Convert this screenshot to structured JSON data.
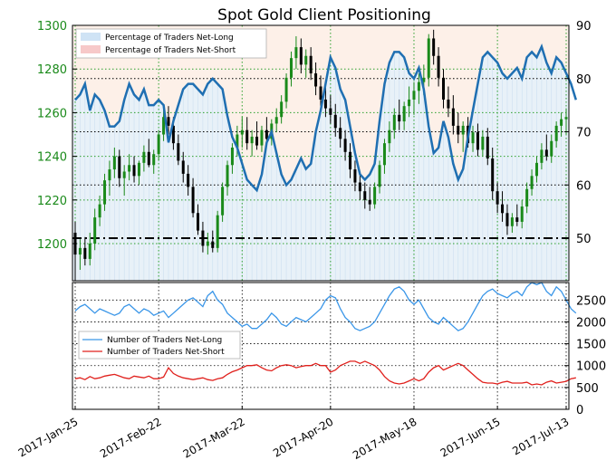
{
  "chart_data": [
    {
      "type": "candlestick-line-area",
      "title": "Spot Gold Client Positioning",
      "left_axis": {
        "ticks": [
          1200,
          1220,
          1240,
          1260,
          1280,
          1300
        ],
        "ylim": [
          1183,
          1300
        ],
        "color": "#1a8a1a"
      },
      "right_axis": {
        "ticks": [
          50,
          60,
          70,
          80,
          90
        ],
        "ylim": [
          42,
          90
        ]
      },
      "legend": {
        "placement": "top-left",
        "entries": [
          {
            "label": "Percentage of Traders Net-Long",
            "color": "#cfe3f5"
          },
          {
            "label": "Percentage of Traders Net-Short",
            "color": "#f7c9c9"
          }
        ]
      },
      "reference_line": {
        "value": 50,
        "axis": "right",
        "style": "dash-dot"
      },
      "x_ticks": [
        "2017-Jan-25",
        "2017-Feb-22",
        "2017-Mar-22",
        "2017-Apr-20",
        "2017-May-18",
        "2017-Jun-15",
        "2017-Jul-13"
      ],
      "net_long_pct": [
        76,
        77,
        79,
        74,
        77,
        76,
        74,
        71,
        71,
        72,
        76,
        79,
        77,
        76,
        78,
        75,
        75,
        76,
        75,
        68,
        72,
        75,
        78,
        79,
        79,
        78,
        77,
        79,
        80,
        79,
        78,
        73,
        69,
        67,
        64,
        61,
        60,
        59,
        62,
        68,
        70,
        66,
        62,
        60,
        61,
        63,
        65,
        63,
        64,
        70,
        74,
        79,
        84,
        82,
        78,
        76,
        71,
        66,
        62,
        61,
        62,
        64,
        72,
        79,
        83,
        85,
        85,
        84,
        81,
        80,
        82,
        78,
        71,
        66,
        67,
        72,
        69,
        64,
        61,
        63,
        69,
        74,
        79,
        84,
        85,
        84,
        83,
        81,
        80,
        81,
        82,
        80,
        84,
        85,
        84,
        86,
        83,
        81,
        84,
        83,
        81,
        79,
        76
      ],
      "candles": [
        {
          "o": 1205,
          "h": 1210,
          "l": 1183,
          "c": 1195
        },
        {
          "o": 1195,
          "h": 1202,
          "l": 1188,
          "c": 1198
        },
        {
          "o": 1198,
          "h": 1203,
          "l": 1190,
          "c": 1193
        },
        {
          "o": 1193,
          "h": 1205,
          "l": 1190,
          "c": 1200
        },
        {
          "o": 1200,
          "h": 1216,
          "l": 1197,
          "c": 1212
        },
        {
          "o": 1212,
          "h": 1222,
          "l": 1208,
          "c": 1218
        },
        {
          "o": 1218,
          "h": 1232,
          "l": 1215,
          "c": 1229
        },
        {
          "o": 1229,
          "h": 1238,
          "l": 1222,
          "c": 1234
        },
        {
          "o": 1234,
          "h": 1244,
          "l": 1230,
          "c": 1240
        },
        {
          "o": 1240,
          "h": 1243,
          "l": 1226,
          "c": 1230
        },
        {
          "o": 1230,
          "h": 1236,
          "l": 1222,
          "c": 1233
        },
        {
          "o": 1233,
          "h": 1241,
          "l": 1229,
          "c": 1236
        },
        {
          "o": 1236,
          "h": 1240,
          "l": 1228,
          "c": 1231
        },
        {
          "o": 1231,
          "h": 1238,
          "l": 1227,
          "c": 1237
        },
        {
          "o": 1237,
          "h": 1245,
          "l": 1233,
          "c": 1242
        },
        {
          "o": 1242,
          "h": 1248,
          "l": 1235,
          "c": 1236
        },
        {
          "o": 1236,
          "h": 1243,
          "l": 1232,
          "c": 1241
        },
        {
          "o": 1241,
          "h": 1252,
          "l": 1238,
          "c": 1250
        },
        {
          "o": 1250,
          "h": 1262,
          "l": 1247,
          "c": 1258
        },
        {
          "o": 1258,
          "h": 1263,
          "l": 1250,
          "c": 1254
        },
        {
          "o": 1254,
          "h": 1258,
          "l": 1243,
          "c": 1246
        },
        {
          "o": 1246,
          "h": 1250,
          "l": 1236,
          "c": 1238
        },
        {
          "o": 1238,
          "h": 1242,
          "l": 1228,
          "c": 1232
        },
        {
          "o": 1232,
          "h": 1236,
          "l": 1222,
          "c": 1226
        },
        {
          "o": 1226,
          "h": 1230,
          "l": 1212,
          "c": 1214
        },
        {
          "o": 1214,
          "h": 1218,
          "l": 1204,
          "c": 1206
        },
        {
          "o": 1206,
          "h": 1210,
          "l": 1196,
          "c": 1199
        },
        {
          "o": 1199,
          "h": 1205,
          "l": 1195,
          "c": 1201
        },
        {
          "o": 1201,
          "h": 1206,
          "l": 1196,
          "c": 1198
        },
        {
          "o": 1198,
          "h": 1215,
          "l": 1196,
          "c": 1213
        },
        {
          "o": 1213,
          "h": 1228,
          "l": 1210,
          "c": 1226
        },
        {
          "o": 1226,
          "h": 1238,
          "l": 1222,
          "c": 1236
        },
        {
          "o": 1236,
          "h": 1246,
          "l": 1232,
          "c": 1244
        },
        {
          "o": 1244,
          "h": 1254,
          "l": 1240,
          "c": 1250
        },
        {
          "o": 1250,
          "h": 1258,
          "l": 1244,
          "c": 1252
        },
        {
          "o": 1252,
          "h": 1258,
          "l": 1243,
          "c": 1246
        },
        {
          "o": 1246,
          "h": 1252,
          "l": 1240,
          "c": 1249
        },
        {
          "o": 1249,
          "h": 1256,
          "l": 1243,
          "c": 1245
        },
        {
          "o": 1245,
          "h": 1254,
          "l": 1242,
          "c": 1252
        },
        {
          "o": 1252,
          "h": 1258,
          "l": 1246,
          "c": 1248
        },
        {
          "o": 1248,
          "h": 1257,
          "l": 1245,
          "c": 1255
        },
        {
          "o": 1255,
          "h": 1262,
          "l": 1251,
          "c": 1258
        },
        {
          "o": 1258,
          "h": 1268,
          "l": 1255,
          "c": 1265
        },
        {
          "o": 1265,
          "h": 1278,
          "l": 1262,
          "c": 1276
        },
        {
          "o": 1276,
          "h": 1288,
          "l": 1272,
          "c": 1285
        },
        {
          "o": 1285,
          "h": 1295,
          "l": 1280,
          "c": 1290
        },
        {
          "o": 1290,
          "h": 1294,
          "l": 1278,
          "c": 1282
        },
        {
          "o": 1282,
          "h": 1289,
          "l": 1276,
          "c": 1286
        },
        {
          "o": 1286,
          "h": 1290,
          "l": 1275,
          "c": 1278
        },
        {
          "o": 1278,
          "h": 1283,
          "l": 1268,
          "c": 1272
        },
        {
          "o": 1272,
          "h": 1277,
          "l": 1262,
          "c": 1266
        },
        {
          "o": 1266,
          "h": 1272,
          "l": 1258,
          "c": 1262
        },
        {
          "o": 1262,
          "h": 1268,
          "l": 1255,
          "c": 1259
        },
        {
          "o": 1259,
          "h": 1264,
          "l": 1249,
          "c": 1253
        },
        {
          "o": 1253,
          "h": 1258,
          "l": 1244,
          "c": 1248
        },
        {
          "o": 1248,
          "h": 1252,
          "l": 1238,
          "c": 1242
        },
        {
          "o": 1242,
          "h": 1246,
          "l": 1230,
          "c": 1234
        },
        {
          "o": 1234,
          "h": 1238,
          "l": 1224,
          "c": 1228
        },
        {
          "o": 1228,
          "h": 1232,
          "l": 1220,
          "c": 1224
        },
        {
          "o": 1224,
          "h": 1228,
          "l": 1216,
          "c": 1220
        },
        {
          "o": 1220,
          "h": 1226,
          "l": 1215,
          "c": 1218
        },
        {
          "o": 1218,
          "h": 1228,
          "l": 1216,
          "c": 1226
        },
        {
          "o": 1226,
          "h": 1238,
          "l": 1223,
          "c": 1236
        },
        {
          "o": 1236,
          "h": 1248,
          "l": 1232,
          "c": 1246
        },
        {
          "o": 1246,
          "h": 1256,
          "l": 1242,
          "c": 1252
        },
        {
          "o": 1252,
          "h": 1262,
          "l": 1248,
          "c": 1259
        },
        {
          "o": 1259,
          "h": 1266,
          "l": 1252,
          "c": 1256
        },
        {
          "o": 1256,
          "h": 1265,
          "l": 1252,
          "c": 1263
        },
        {
          "o": 1263,
          "h": 1272,
          "l": 1258,
          "c": 1266
        },
        {
          "o": 1266,
          "h": 1274,
          "l": 1259,
          "c": 1270
        },
        {
          "o": 1270,
          "h": 1278,
          "l": 1264,
          "c": 1274
        },
        {
          "o": 1274,
          "h": 1282,
          "l": 1268,
          "c": 1276
        },
        {
          "o": 1276,
          "h": 1296,
          "l": 1272,
          "c": 1294
        },
        {
          "o": 1294,
          "h": 1298,
          "l": 1282,
          "c": 1286
        },
        {
          "o": 1286,
          "h": 1290,
          "l": 1272,
          "c": 1276
        },
        {
          "o": 1276,
          "h": 1280,
          "l": 1262,
          "c": 1266
        },
        {
          "o": 1266,
          "h": 1272,
          "l": 1258,
          "c": 1262
        },
        {
          "o": 1262,
          "h": 1268,
          "l": 1250,
          "c": 1254
        },
        {
          "o": 1254,
          "h": 1260,
          "l": 1246,
          "c": 1250
        },
        {
          "o": 1250,
          "h": 1256,
          "l": 1242,
          "c": 1254
        },
        {
          "o": 1254,
          "h": 1258,
          "l": 1244,
          "c": 1246
        },
        {
          "o": 1246,
          "h": 1254,
          "l": 1242,
          "c": 1251
        },
        {
          "o": 1251,
          "h": 1255,
          "l": 1240,
          "c": 1243
        },
        {
          "o": 1243,
          "h": 1252,
          "l": 1240,
          "c": 1249
        },
        {
          "o": 1249,
          "h": 1253,
          "l": 1236,
          "c": 1239
        },
        {
          "o": 1239,
          "h": 1244,
          "l": 1220,
          "c": 1224
        },
        {
          "o": 1224,
          "h": 1228,
          "l": 1214,
          "c": 1218
        },
        {
          "o": 1218,
          "h": 1224,
          "l": 1210,
          "c": 1214
        },
        {
          "o": 1214,
          "h": 1218,
          "l": 1204,
          "c": 1208
        },
        {
          "o": 1208,
          "h": 1214,
          "l": 1205,
          "c": 1212
        },
        {
          "o": 1212,
          "h": 1218,
          "l": 1208,
          "c": 1210
        },
        {
          "o": 1210,
          "h": 1220,
          "l": 1207,
          "c": 1217
        },
        {
          "o": 1217,
          "h": 1228,
          "l": 1214,
          "c": 1225
        },
        {
          "o": 1225,
          "h": 1234,
          "l": 1222,
          "c": 1231
        },
        {
          "o": 1231,
          "h": 1240,
          "l": 1228,
          "c": 1237
        },
        {
          "o": 1237,
          "h": 1246,
          "l": 1234,
          "c": 1243
        },
        {
          "o": 1243,
          "h": 1250,
          "l": 1238,
          "c": 1240
        },
        {
          "o": 1240,
          "h": 1250,
          "l": 1237,
          "c": 1247
        },
        {
          "o": 1247,
          "h": 1256,
          "l": 1244,
          "c": 1254
        },
        {
          "o": 1254,
          "h": 1260,
          "l": 1249,
          "c": 1257
        },
        {
          "o": 1257,
          "h": 1262,
          "l": 1250,
          "c": 1258
        }
      ]
    },
    {
      "type": "line",
      "y_ticks": [
        0,
        500,
        1000,
        1500,
        2000,
        2500
      ],
      "ylim": [
        0,
        2900
      ],
      "legend": {
        "placement": "center-left",
        "entries": [
          {
            "label": "Number of Traders Net-Long",
            "color": "#3a96e8"
          },
          {
            "label": "Number of Traders Net-Short",
            "color": "#e0201c"
          }
        ]
      },
      "series": [
        {
          "name": "Number of Traders Net-Long",
          "color": "#3a96e8",
          "values": [
            2250,
            2350,
            2400,
            2300,
            2200,
            2300,
            2250,
            2200,
            2150,
            2200,
            2350,
            2400,
            2300,
            2200,
            2300,
            2250,
            2150,
            2200,
            2250,
            2100,
            2200,
            2300,
            2400,
            2500,
            2550,
            2450,
            2350,
            2600,
            2700,
            2500,
            2400,
            2200,
            2100,
            2000,
            1900,
            1950,
            1850,
            1850,
            1950,
            2050,
            2200,
            2100,
            1950,
            1900,
            2000,
            2100,
            2050,
            2000,
            2100,
            2200,
            2300,
            2500,
            2600,
            2550,
            2300,
            2100,
            2000,
            1850,
            1800,
            1850,
            1900,
            2000,
            2200,
            2400,
            2600,
            2750,
            2800,
            2700,
            2500,
            2400,
            2500,
            2300,
            2100,
            2000,
            1950,
            2100,
            2000,
            1900,
            1800,
            1850,
            2000,
            2200,
            2400,
            2600,
            2700,
            2750,
            2650,
            2600,
            2550,
            2650,
            2700,
            2600,
            2800,
            2900,
            2850,
            2900,
            2700,
            2600,
            2800,
            2700,
            2500,
            2300,
            2200
          ]
        },
        {
          "name": "Number of Traders Net-Short",
          "color": "#e0201c",
          "values": [
            700,
            720,
            680,
            750,
            700,
            720,
            760,
            780,
            800,
            760,
            720,
            700,
            760,
            740,
            720,
            760,
            700,
            700,
            740,
            950,
            820,
            760,
            720,
            700,
            680,
            700,
            720,
            680,
            660,
            700,
            720,
            800,
            860,
            900,
            950,
            1000,
            1000,
            1020,
            950,
            900,
            880,
            950,
            1000,
            1020,
            1000,
            950,
            980,
            1000,
            1000,
            1050,
            1000,
            1000,
            850,
            900,
            1000,
            1050,
            1100,
            1100,
            1050,
            1100,
            1050,
            1000,
            900,
            750,
            650,
            600,
            580,
            600,
            650,
            700,
            650,
            700,
            850,
            950,
            1000,
            900,
            950,
            1000,
            1050,
            1000,
            900,
            800,
            700,
            620,
            600,
            600,
            580,
            620,
            640,
            600,
            600,
            600,
            620,
            560,
            580,
            560,
            620,
            650,
            600,
            620,
            640,
            700,
            720
          ]
        }
      ]
    }
  ]
}
